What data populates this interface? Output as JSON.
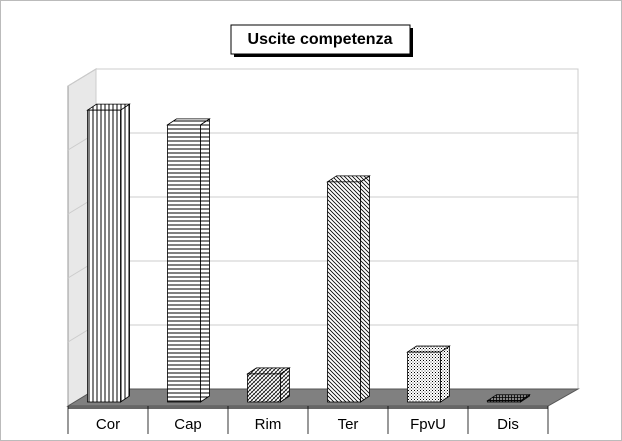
{
  "chart_data": {
    "type": "bar3d",
    "title": "Uscite competenza",
    "categories": [
      "Cor",
      "Cap",
      "Rim",
      "Ter",
      "FpvU",
      "Dis"
    ],
    "values": [
      4.56,
      4.33,
      0.44,
      3.44,
      0.78,
      0.02
    ],
    "ylim": [
      0,
      5
    ],
    "yticks": [
      0,
      1,
      2,
      3,
      4,
      5
    ],
    "grid": true
  }
}
